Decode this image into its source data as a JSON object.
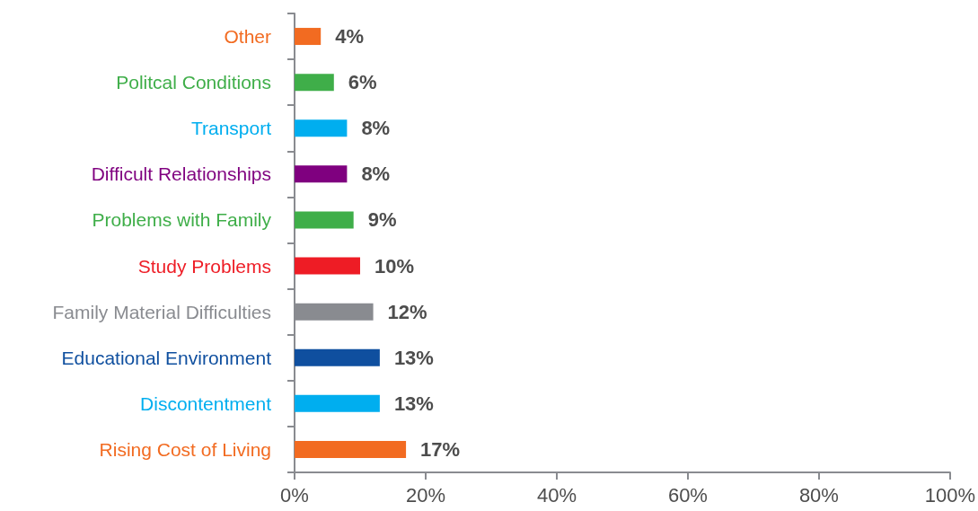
{
  "chart_data": {
    "type": "bar",
    "orientation": "horizontal",
    "categories": [
      "Other",
      "Politcal Conditions",
      "Transport",
      "Difficult Relationships",
      "Problems with Family",
      "Study Problems",
      "Family Material Difficulties",
      "Educational Environment",
      "Discontentment",
      "Rising Cost of Living"
    ],
    "values": [
      4,
      6,
      8,
      8,
      9,
      10,
      12,
      13,
      13,
      17
    ],
    "colors": [
      "#f26b21",
      "#3fae49",
      "#00aeef",
      "#7f007f",
      "#3fae49",
      "#ee1c25",
      "#898b90",
      "#0f4f9f",
      "#00aeef",
      "#f26b21"
    ],
    "value_labels": [
      "4%",
      "6%",
      "8%",
      "8%",
      "9%",
      "10%",
      "12%",
      "13%",
      "13%",
      "17%"
    ],
    "xlim": [
      0,
      100
    ],
    "xticks": [
      {
        "value": 0,
        "label": "0%"
      },
      {
        "value": 20,
        "label": "20%"
      },
      {
        "value": 40,
        "label": "40%"
      },
      {
        "value": 60,
        "label": "60%"
      },
      {
        "value": 80,
        "label": "80%"
      },
      {
        "value": 100,
        "label": "100%"
      }
    ]
  }
}
